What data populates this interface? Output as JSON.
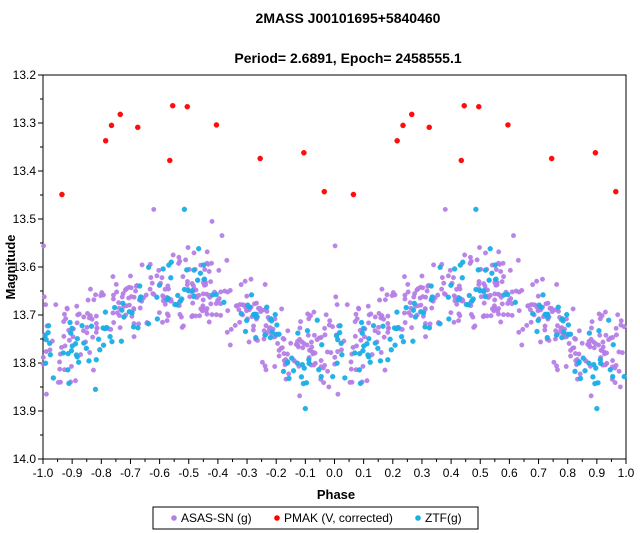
{
  "chart_data": {
    "type": "scatter",
    "title": "2MASS  J00101695+5840460",
    "subtitle": "Period=  2.6891,  Epoch=  2458555.1",
    "xlabel": "Phase",
    "ylabel": "Magnitude",
    "xlim": [
      -1.0,
      1.0
    ],
    "ylim": [
      14.0,
      13.2
    ],
    "y_inverted": true,
    "x_ticks": [
      -1.0,
      -0.9,
      -0.8,
      -0.7,
      -0.6,
      -0.5,
      -0.4,
      -0.3,
      -0.2,
      -0.1,
      0.0,
      0.1,
      0.2,
      0.3,
      0.4,
      0.5,
      0.6,
      0.7,
      0.8,
      0.9,
      1.0
    ],
    "x_tick_labels": [
      "-1.0",
      "-0.9",
      "-0.8",
      "-0.7",
      "-0.6",
      "-0.5",
      "-0.4",
      "-0.3",
      "-0.2",
      "-0.1",
      "0.0",
      "0.1",
      "0.2",
      "0.3",
      "0.4",
      "0.5",
      "0.6",
      "0.7",
      "0.8",
      "0.9",
      "1.0"
    ],
    "y_ticks": [
      13.2,
      13.3,
      13.4,
      13.5,
      13.6,
      13.7,
      13.8,
      13.9,
      14.0
    ],
    "y_tick_labels": [
      "13.2",
      "13.3",
      "13.4",
      "13.5",
      "13.6",
      "13.7",
      "13.8",
      "13.9",
      "14.0"
    ],
    "grid": false,
    "legend_position": "bottom",
    "colors": {
      "asassn": "#b57ee6",
      "pmak": "#ff0000",
      "ztf": "#1aaee6"
    },
    "series": [
      {
        "name": "ASAS-SN (g)",
        "color": "#b57ee6",
        "model": {
          "mean": 13.708,
          "amp": 0.06,
          "sine_amp": 0.012,
          "scatter": 0.042,
          "count": 340,
          "seed": 7
        },
        "x": [
          -0.998,
          -0.94,
          -0.62,
          -0.42,
          -0.52,
          0.002,
          0.06,
          0.38,
          0.58,
          -0.76,
          0.24
        ],
        "y": [
          13.556,
          13.84,
          13.48,
          13.505,
          13.62,
          13.556,
          13.84,
          13.48,
          13.62,
          13.62,
          13.62
        ]
      },
      {
        "name": "PMAK (V, corrected)",
        "color": "#ff0000",
        "x": [
          -0.935,
          -0.785,
          -0.765,
          -0.735,
          -0.675,
          -0.565,
          -0.555,
          -0.505,
          -0.405,
          -0.255,
          -0.105,
          -0.035,
          0.065,
          0.215,
          0.235,
          0.265,
          0.325,
          0.435,
          0.445,
          0.495,
          0.595,
          0.745,
          0.895,
          0.965
        ],
        "y": [
          13.449,
          13.337,
          13.305,
          13.282,
          13.309,
          13.378,
          13.264,
          13.266,
          13.304,
          13.374,
          13.362,
          13.443,
          13.449,
          13.337,
          13.305,
          13.282,
          13.309,
          13.378,
          13.264,
          13.266,
          13.304,
          13.374,
          13.362,
          13.443
        ]
      },
      {
        "name": "ZTF(g)",
        "color": "#1aaee6",
        "model": {
          "mean": 13.718,
          "amp": 0.075,
          "sine_amp": 0.01,
          "scatter": 0.038,
          "count": 120,
          "seed": 23
        },
        "x": [
          -0.515,
          -0.56,
          0.485,
          0.44,
          -0.1,
          0.9,
          -0.82
        ],
        "y": [
          13.48,
          13.59,
          13.48,
          13.59,
          13.895,
          13.895,
          13.855
        ]
      }
    ],
    "legend": [
      {
        "label": "ASAS-SN (g)",
        "color": "#b57ee6"
      },
      {
        "label": "PMAK (V, corrected)",
        "color": "#ff0000"
      },
      {
        "label": "ZTF(g)",
        "color": "#1aaee6"
      }
    ]
  }
}
